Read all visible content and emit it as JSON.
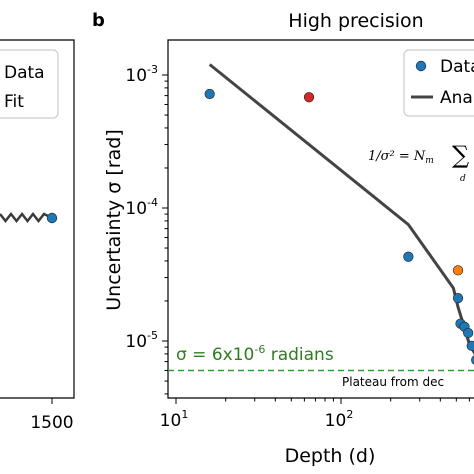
{
  "left_panel": {
    "legend": {
      "entries": [
        "Data",
        "Fit"
      ]
    },
    "x_tick_labels": [
      "1500"
    ],
    "last_point": {
      "x": 1500,
      "color": "#1f77b4"
    },
    "fit_color": "#3a3a3a"
  },
  "right_panel": {
    "panel_letter": "b",
    "formula_text": "1/σ² = N",
    "formula_subscript": "m",
    "formula_sum": "∑",
    "formula_sum_index": "d",
    "threshold_label": "σ = 6x10",
    "threshold_label_sup": "-6",
    "threshold_label_tail": " radians",
    "plateau_label": "Plateau from dec",
    "threshold_color": "#2ca02c"
  },
  "chart_data": {
    "type": "scatter",
    "title": "High precision",
    "xlabel": "Depth (d)",
    "ylabel": "Uncertainty σ [rad]",
    "xscale": "log",
    "yscale": "log",
    "xlim": [
      10,
      800
    ],
    "ylim": [
      4.5e-06,
      0.0018
    ],
    "x_ticks": [
      {
        "value": 10,
        "base": "10",
        "exp": "1"
      },
      {
        "value": 100,
        "base": "10",
        "exp": "2"
      }
    ],
    "y_ticks": [
      {
        "value": 1e-05,
        "base": "10",
        "exp": "-5"
      },
      {
        "value": 0.0001,
        "base": "10",
        "exp": "-4"
      },
      {
        "value": 0.001,
        "base": "10",
        "exp": "-3"
      }
    ],
    "legend": {
      "entries": [
        "Data",
        "Ana"
      ],
      "location": "upper right"
    },
    "series": [
      {
        "name": "Data",
        "kind": "points",
        "points": [
          {
            "x": 16,
            "y": 0.00072,
            "color": "#1f77b4"
          },
          {
            "x": 64,
            "y": 0.00068,
            "color": "#d62728"
          },
          {
            "x": 256,
            "y": 4.3e-05,
            "color": "#1f77b4"
          },
          {
            "x": 512,
            "y": 3.4e-05,
            "color": "#ff7f0e"
          },
          {
            "x": 512,
            "y": 2.1e-05,
            "color": "#1f77b4"
          },
          {
            "x": 530,
            "y": 1.35e-05,
            "color": "#1f77b4"
          },
          {
            "x": 560,
            "y": 1.28e-05,
            "color": "#1f77b4"
          },
          {
            "x": 590,
            "y": 1.15e-05,
            "color": "#1f77b4"
          },
          {
            "x": 620,
            "y": 9.2e-06,
            "color": "#1f77b4"
          },
          {
            "x": 660,
            "y": 7.2e-06,
            "color": "#1f77b4"
          }
        ]
      },
      {
        "name": "Ana",
        "kind": "line",
        "color": "#444444",
        "x": [
          16,
          256,
          480,
          512,
          600,
          700
        ],
        "y": [
          0.0012,
          7.5e-05,
          2.5e-05,
          1.8e-05,
          9.5e-06,
          6.8e-06
        ]
      }
    ],
    "threshold": {
      "y": 6e-06,
      "color": "#2ca02c",
      "style": "dashed"
    }
  }
}
